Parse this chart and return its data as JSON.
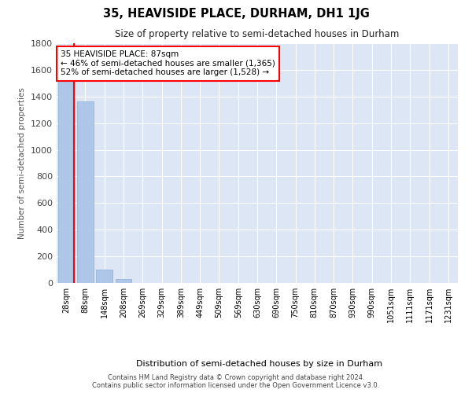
{
  "title": "35, HEAVISIDE PLACE, DURHAM, DH1 1JG",
  "subtitle": "Size of property relative to semi-detached houses in Durham",
  "xlabel": "Distribution of semi-detached houses by size in Durham",
  "ylabel": "Number of semi-detached properties",
  "bin_labels": [
    "28sqm",
    "88sqm",
    "148sqm",
    "208sqm",
    "269sqm",
    "329sqm",
    "389sqm",
    "449sqm",
    "509sqm",
    "569sqm",
    "630sqm",
    "690sqm",
    "750sqm",
    "810sqm",
    "870sqm",
    "930sqm",
    "990sqm",
    "1051sqm",
    "1111sqm",
    "1171sqm",
    "1231sqm"
  ],
  "bar_values": [
    1528,
    1365,
    100,
    30,
    0,
    0,
    0,
    0,
    0,
    0,
    0,
    0,
    0,
    0,
    0,
    0,
    0,
    0,
    0,
    0,
    0
  ],
  "bar_color": "#aec6e8",
  "property_sqm": 87,
  "annotation_title": "35 HEAVISIDE PLACE: 87sqm",
  "annotation_line1": "← 46% of semi-detached houses are smaller (1,365)",
  "annotation_line2": "52% of semi-detached houses are larger (1,528) →",
  "ylim": [
    0,
    1800
  ],
  "footnote1": "Contains HM Land Registry data © Crown copyright and database right 2024.",
  "footnote2": "Contains public sector information licensed under the Open Government Licence v3.0.",
  "bg_color": "#ffffff",
  "plot_bg_color": "#dce6f5"
}
